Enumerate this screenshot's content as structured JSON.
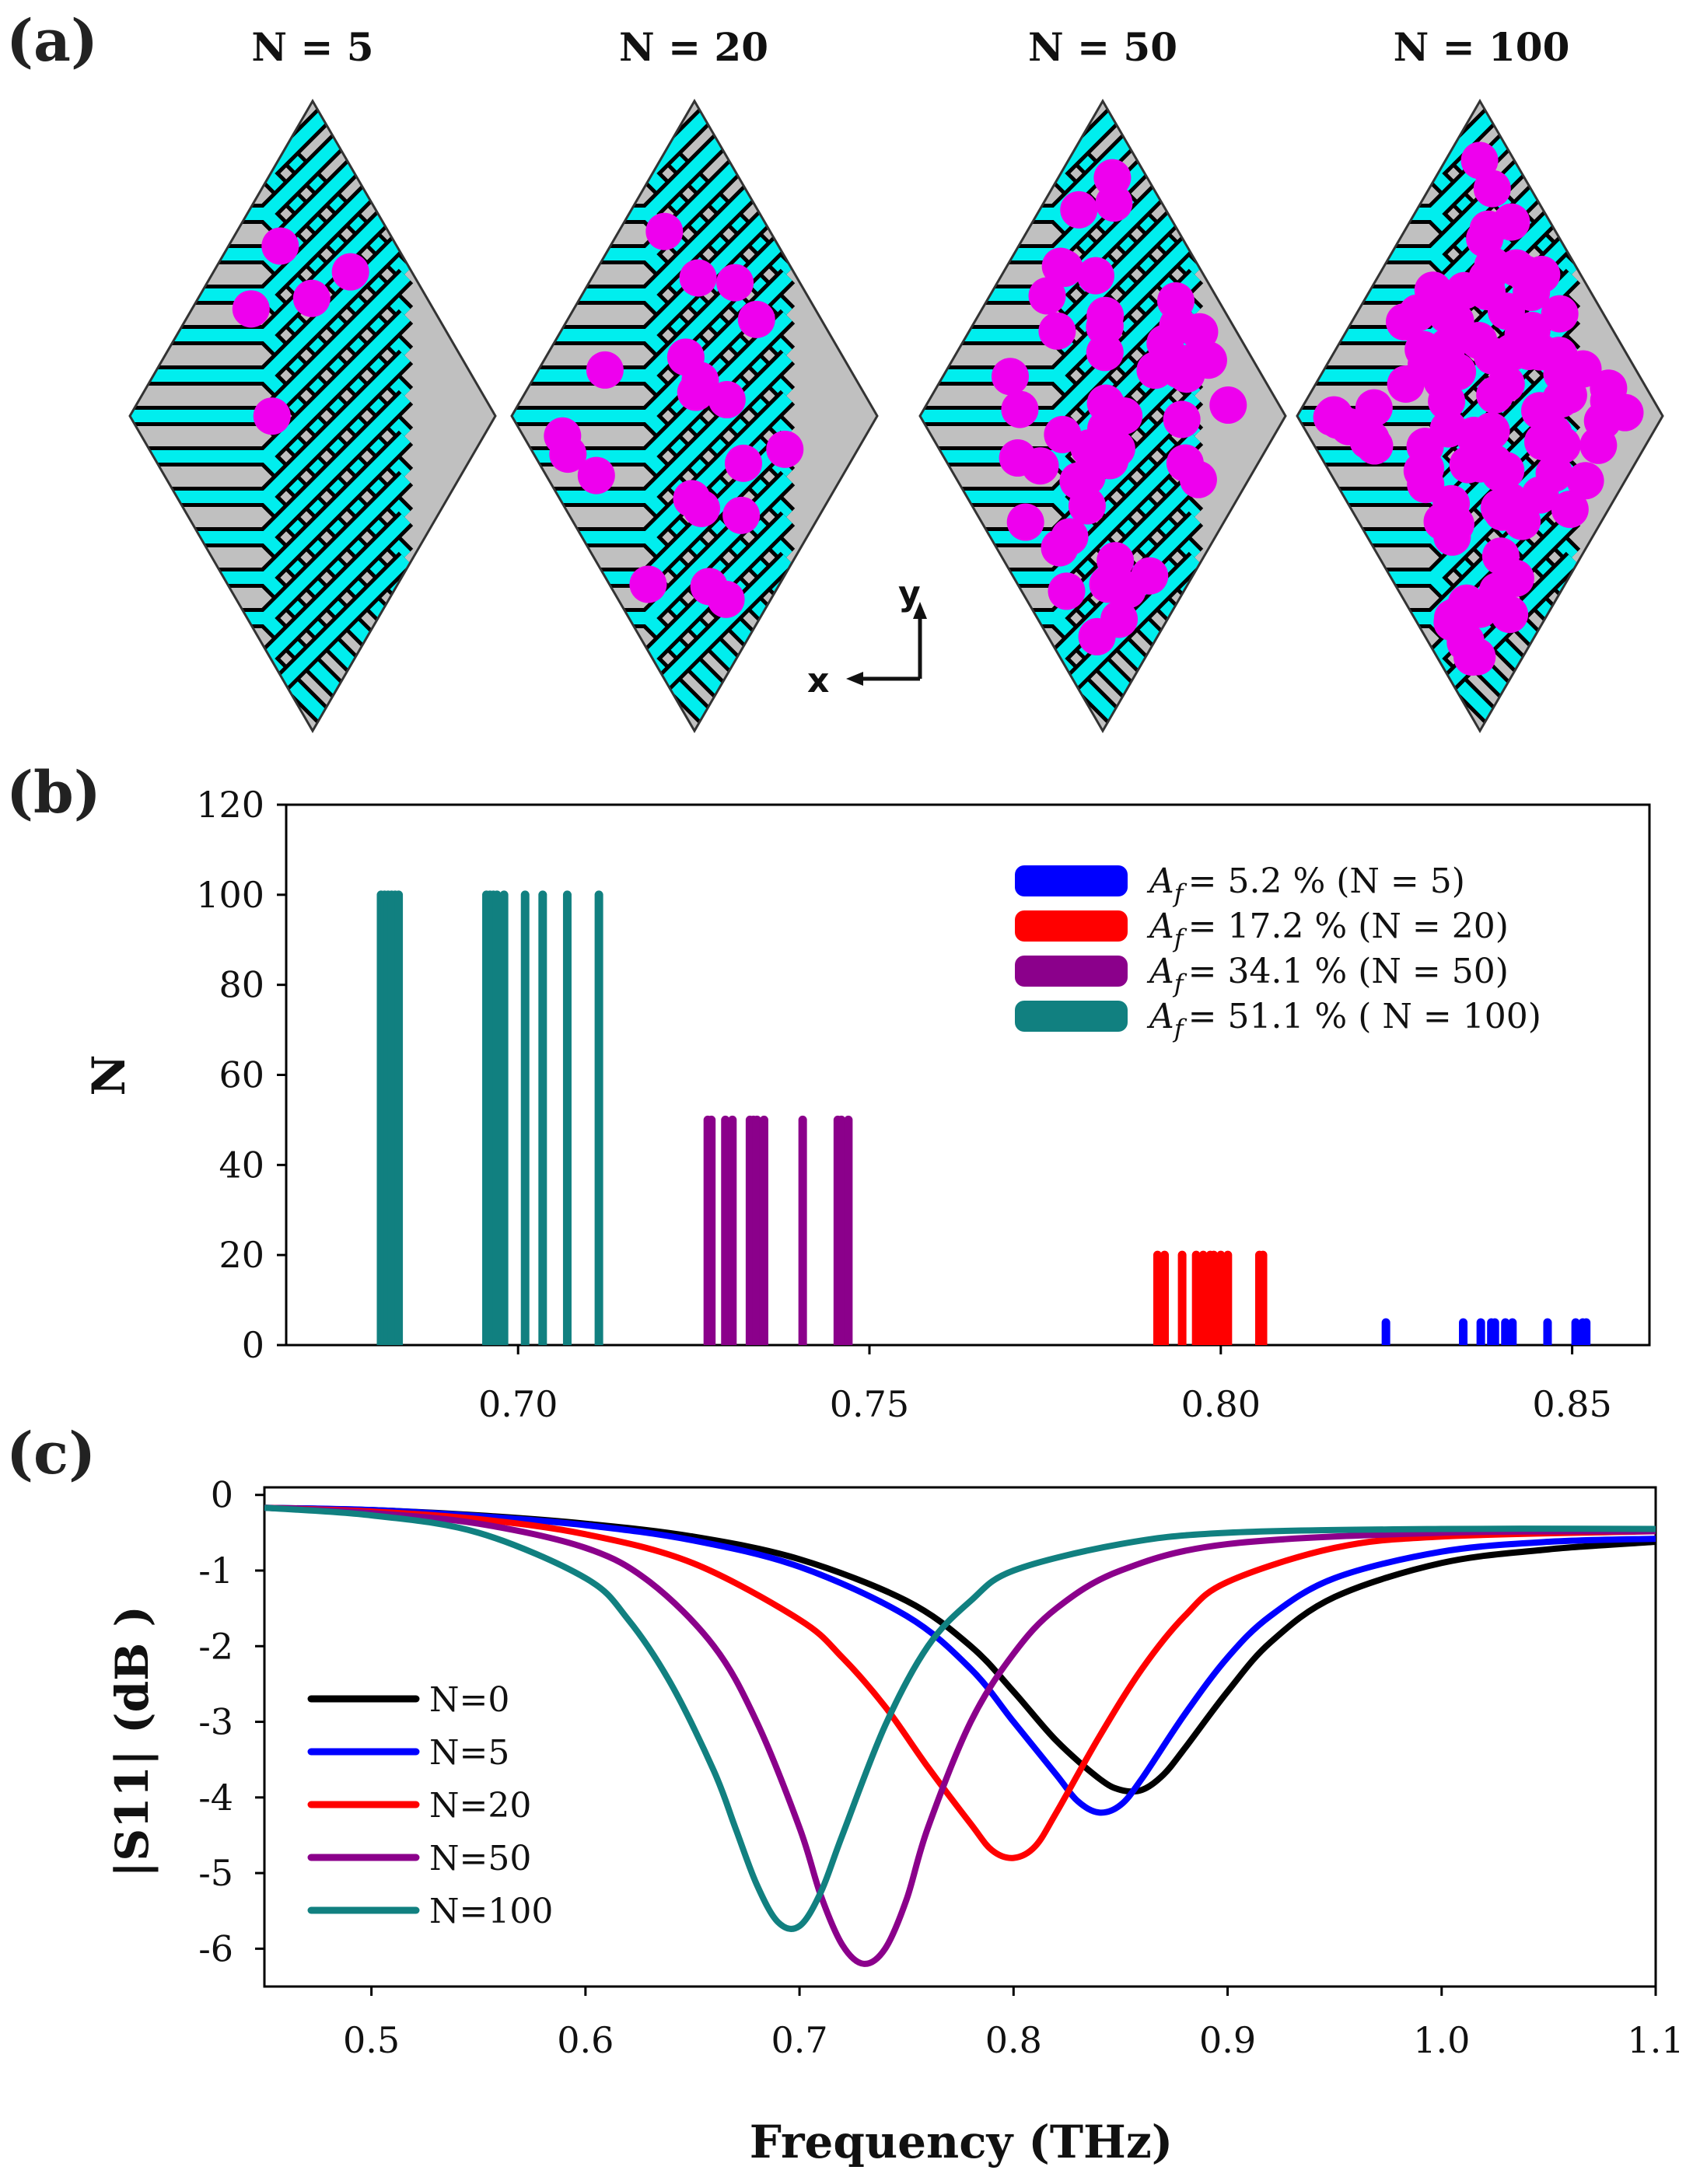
{
  "panel_labels": {
    "a": "(a)",
    "b": "(b)",
    "c": "(c)"
  },
  "colors": {
    "N5": "#0000ff",
    "N20": "#ff0000",
    "N50": "#8b008b",
    "N100": "#118080",
    "N0": "#000000",
    "cyan": "#00eeee",
    "gray": "#c0c0c0",
    "droplet": "#ee00ee",
    "frame": "#000000"
  },
  "panel_a": {
    "titles": [
      "N = 5",
      "N = 20",
      "N = 50",
      "N = 100"
    ],
    "axis_x": "x",
    "axis_y": "y",
    "icon": "arrow-axes-icon"
  },
  "chart_data": [
    {
      "type": "bar",
      "id": "panel-b",
      "xlabel": "",
      "ylabel": "N",
      "xlim": [
        0.667,
        0.861
      ],
      "ylim": [
        0,
        120
      ],
      "xticks": [
        "0.70",
        "0.75",
        "0.80",
        "0.85"
      ],
      "yticks": [
        "0",
        "20",
        "40",
        "60",
        "80",
        "100",
        "120"
      ],
      "legend_position": "top-right",
      "series": [
        {
          "name": "N5",
          "legend_prefix": "A",
          "legend_sub": "f",
          "legend_text": "= 5.2 % (N = 5)",
          "height": 5,
          "x": [
            0.8235,
            0.8345,
            0.837,
            0.8385,
            0.839,
            0.8405,
            0.8415,
            0.8465,
            0.8505,
            0.8515,
            0.852
          ]
        },
        {
          "name": "N20",
          "legend_prefix": "A",
          "legend_sub": "f",
          "legend_text": "= 17.2 % (N = 20)",
          "height": 20,
          "x": [
            0.791,
            0.792,
            0.7945,
            0.7965,
            0.7975,
            0.7985,
            0.799,
            0.8,
            0.801,
            0.8055,
            0.806
          ]
        },
        {
          "name": "N50",
          "legend_prefix": "A",
          "legend_sub": "f",
          "legend_text": "= 34.1 % (N = 50)",
          "height": 50,
          "x": [
            0.727,
            0.7275,
            0.7295,
            0.7305,
            0.733,
            0.7335,
            0.734,
            0.735,
            0.7405,
            0.7455,
            0.746,
            0.747
          ]
        },
        {
          "name": "N100",
          "legend_prefix": "A",
          "legend_sub": "f",
          "legend_text": "= 51.1 % ( N = 100)",
          "height": 100,
          "x": [
            0.6805,
            0.681,
            0.6815,
            0.682,
            0.6825,
            0.683,
            0.6955,
            0.696,
            0.6965,
            0.697,
            0.698,
            0.701,
            0.7035,
            0.707,
            0.7115
          ]
        }
      ]
    },
    {
      "type": "line",
      "id": "panel-c",
      "xlabel": "Frequency (THz)",
      "ylabel": "|S11| (dB )",
      "xlim": [
        0.45,
        1.1
      ],
      "ylim": [
        -6.5,
        0.1
      ],
      "xticks": [
        "0.5",
        "0.6",
        "0.7",
        "0.8",
        "0.9",
        "1.0",
        "1.1"
      ],
      "yticks": [
        "0",
        "-1",
        "-2",
        "-3",
        "-4",
        "-5",
        "-6"
      ],
      "legend_position": "bottom-left",
      "series": [
        {
          "name": "N=0",
          "color": "#000000",
          "x": [
            0.45,
            0.5,
            0.55,
            0.6,
            0.65,
            0.7,
            0.75,
            0.78,
            0.8,
            0.82,
            0.84,
            0.85,
            0.86,
            0.87,
            0.88,
            0.9,
            0.92,
            0.95,
            1.0,
            1.05,
            1.1
          ],
          "y": [
            -0.17,
            -0.2,
            -0.27,
            -0.38,
            -0.55,
            -0.85,
            -1.4,
            -2.0,
            -2.6,
            -3.25,
            -3.75,
            -3.9,
            -3.9,
            -3.7,
            -3.35,
            -2.6,
            -1.95,
            -1.35,
            -0.9,
            -0.72,
            -0.62
          ]
        },
        {
          "name": "N=5",
          "color": "#0000ff",
          "x": [
            0.45,
            0.5,
            0.55,
            0.6,
            0.65,
            0.7,
            0.75,
            0.78,
            0.8,
            0.82,
            0.83,
            0.84,
            0.85,
            0.86,
            0.88,
            0.9,
            0.92,
            0.95,
            1.0,
            1.05,
            1.1
          ],
          "y": [
            -0.17,
            -0.2,
            -0.28,
            -0.4,
            -0.6,
            -0.95,
            -1.6,
            -2.3,
            -3.0,
            -3.7,
            -4.05,
            -4.2,
            -4.1,
            -3.75,
            -2.9,
            -2.15,
            -1.6,
            -1.1,
            -0.75,
            -0.62,
            -0.58
          ]
        },
        {
          "name": "N=20",
          "color": "#ff0000",
          "x": [
            0.45,
            0.5,
            0.55,
            0.6,
            0.65,
            0.7,
            0.72,
            0.74,
            0.76,
            0.78,
            0.79,
            0.8,
            0.81,
            0.82,
            0.84,
            0.86,
            0.88,
            0.9,
            0.95,
            1.0,
            1.1
          ],
          "y": [
            -0.17,
            -0.22,
            -0.32,
            -0.52,
            -0.9,
            -1.65,
            -2.15,
            -2.8,
            -3.6,
            -4.35,
            -4.7,
            -4.8,
            -4.65,
            -4.2,
            -3.2,
            -2.3,
            -1.6,
            -1.15,
            -0.7,
            -0.55,
            -0.48
          ]
        },
        {
          "name": "N=50",
          "color": "#8b008b",
          "x": [
            0.45,
            0.5,
            0.55,
            0.6,
            0.63,
            0.66,
            0.68,
            0.7,
            0.71,
            0.72,
            0.73,
            0.74,
            0.75,
            0.76,
            0.78,
            0.8,
            0.82,
            0.85,
            0.9,
            1.0,
            1.1
          ],
          "y": [
            -0.17,
            -0.24,
            -0.38,
            -0.7,
            -1.15,
            -2.0,
            -3.0,
            -4.4,
            -5.3,
            -5.95,
            -6.2,
            -6.0,
            -5.35,
            -4.4,
            -3.0,
            -2.1,
            -1.5,
            -1.0,
            -0.65,
            -0.5,
            -0.48
          ]
        },
        {
          "name": "N=100",
          "color": "#118080",
          "x": [
            0.45,
            0.5,
            0.55,
            0.6,
            0.62,
            0.64,
            0.66,
            0.67,
            0.68,
            0.69,
            0.7,
            0.71,
            0.72,
            0.74,
            0.76,
            0.78,
            0.8,
            0.85,
            0.9,
            1.0,
            1.1
          ],
          "y": [
            -0.17,
            -0.27,
            -0.5,
            -1.1,
            -1.65,
            -2.5,
            -3.65,
            -4.4,
            -5.15,
            -5.65,
            -5.7,
            -5.25,
            -4.5,
            -3.05,
            -2.0,
            -1.4,
            -1.0,
            -0.65,
            -0.5,
            -0.45,
            -0.45
          ]
        }
      ]
    }
  ]
}
